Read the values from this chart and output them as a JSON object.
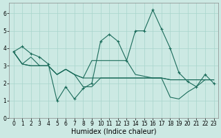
{
  "xlabel": "Humidex (Indice chaleur)",
  "bg_color": "#cce9e3",
  "line_color": "#1a6b5a",
  "x": [
    0,
    1,
    2,
    3,
    4,
    5,
    6,
    7,
    8,
    9,
    10,
    11,
    12,
    13,
    14,
    15,
    16,
    17,
    18,
    19,
    20,
    21,
    22,
    23
  ],
  "main_y": [
    3.8,
    4.1,
    3.7,
    3.5,
    3.1,
    1.0,
    1.8,
    1.1,
    1.7,
    2.0,
    4.4,
    4.8,
    4.4,
    3.3,
    5.0,
    5.0,
    6.2,
    5.1,
    4.0,
    2.6,
    2.1,
    1.8,
    2.5,
    2.0
  ],
  "line2_y": [
    3.8,
    3.1,
    3.0,
    3.0,
    3.0,
    2.5,
    2.8,
    2.5,
    2.3,
    2.3,
    2.3,
    2.3,
    2.3,
    2.3,
    2.3,
    2.3,
    2.3,
    2.3,
    2.2,
    2.2,
    2.2,
    2.2,
    2.2,
    2.2
  ],
  "line3_y": [
    3.8,
    3.1,
    3.5,
    3.0,
    3.0,
    2.5,
    2.8,
    2.5,
    2.3,
    3.3,
    3.3,
    3.3,
    3.3,
    3.3,
    2.5,
    2.4,
    2.3,
    2.3,
    2.2,
    2.2,
    2.2,
    2.2,
    2.2,
    2.2
  ],
  "line4_y": [
    3.8,
    3.1,
    3.0,
    3.0,
    3.0,
    2.5,
    2.8,
    2.5,
    1.8,
    1.8,
    2.3,
    2.3,
    2.3,
    2.3,
    2.3,
    2.3,
    2.3,
    2.3,
    1.2,
    1.1,
    1.5,
    1.8,
    2.2,
    2.2
  ],
  "ylim": [
    0,
    6.6
  ],
  "xlim": [
    -0.5,
    23.5
  ],
  "yticks": [
    0,
    1,
    2,
    3,
    4,
    5,
    6
  ],
  "xticks": [
    0,
    1,
    2,
    3,
    4,
    5,
    6,
    7,
    8,
    9,
    10,
    11,
    12,
    13,
    14,
    15,
    16,
    17,
    18,
    19,
    20,
    21,
    22,
    23
  ],
  "grid_color": "#a8d4cc",
  "tick_labelsize": 5.5,
  "xlabel_fontsize": 7.0
}
